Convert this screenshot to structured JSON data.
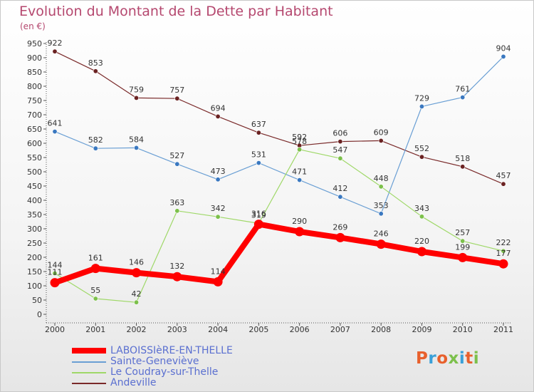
{
  "header": {
    "title": "Evolution du Montant de la Dette par Habitant",
    "unit": "(en €)"
  },
  "logo": {
    "text": "Proxiti",
    "colors": [
      "#e8602c",
      "#3aa0d8",
      "#e8602c",
      "#7cc04b",
      "#3aa0d8",
      "#e8602c",
      "#7cc04b"
    ]
  },
  "chart_data": {
    "type": "line",
    "title": "Evolution du Montant de la Dette par Habitant",
    "subtitle": "(en €)",
    "xlabel": "",
    "ylabel": "",
    "x": [
      "2000",
      "2001",
      "2002",
      "2003",
      "2004",
      "2005",
      "2006",
      "2007",
      "2008",
      "2009",
      "2010",
      "2011"
    ],
    "ylim": [
      0,
      950
    ],
    "yticks": [
      0,
      50,
      100,
      150,
      200,
      250,
      300,
      350,
      400,
      450,
      500,
      550,
      600,
      650,
      700,
      750,
      800,
      850,
      900,
      950
    ],
    "grid": false,
    "legend_position": "bottom-left",
    "series": [
      {
        "name": "Andeville",
        "color": "#7a2a2a",
        "marker_color": "#6a2222",
        "width": 1.2,
        "values": [
          922,
          853,
          759,
          757,
          694,
          637,
          592,
          606,
          609,
          552,
          518,
          457
        ]
      },
      {
        "name": "Sainte-Geneviève",
        "color": "#6a9fd4",
        "marker_color": "#3a78c0",
        "width": 1.2,
        "values": [
          641,
          582,
          584,
          527,
          473,
          531,
          471,
          412,
          353,
          729,
          761,
          904
        ]
      },
      {
        "name": "Le Coudray-sur-Thelle",
        "color": "#9fd868",
        "marker_color": "#7cc04b",
        "width": 1.2,
        "values": [
          144,
          55,
          42,
          363,
          342,
          319,
          578,
          547,
          448,
          343,
          257,
          222
        ]
      },
      {
        "name": "LABOISSIèRE-EN-THELLE",
        "color": "#ff0000",
        "marker_color": "#ff0000",
        "width": 8,
        "values": [
          111,
          161,
          146,
          132,
          114,
          316,
          290,
          269,
          246,
          220,
          199,
          177
        ]
      }
    ]
  },
  "legend": {
    "items": [
      {
        "label": "LABOISSIèRE-EN-THELLE",
        "color": "#ff0000",
        "thick": true
      },
      {
        "label": "Sainte-Geneviève",
        "color": "#6a9fd4",
        "thick": false
      },
      {
        "label": "Le Coudray-sur-Thelle",
        "color": "#9fd868",
        "thick": false
      },
      {
        "label": "Andeville",
        "color": "#7a2a2a",
        "thick": false
      }
    ]
  }
}
